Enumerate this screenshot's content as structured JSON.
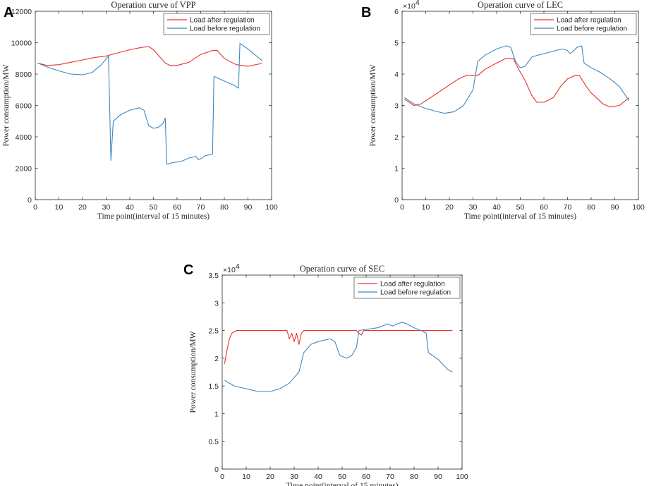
{
  "chart_data": [
    {
      "panel_letter": "A",
      "type": "line",
      "title": "Operation curve of VPP",
      "xlabel": "Time point(interval of 15 minutes)",
      "ylabel": "Power consumption/MW",
      "xlim": [
        0,
        100
      ],
      "ylim": [
        0,
        12000
      ],
      "xticks": [
        0,
        10,
        20,
        30,
        40,
        50,
        60,
        70,
        80,
        90,
        100
      ],
      "yticks": [
        0,
        2000,
        4000,
        6000,
        8000,
        10000,
        12000
      ],
      "ytick_labels": [
        "0",
        "2000",
        "4000",
        "6000",
        "8000",
        "10000",
        "12000"
      ],
      "exponent_label": "",
      "legend": [
        "Load after regulation",
        "Load before regulation"
      ],
      "series": [
        {
          "name": "Load after regulation",
          "color": "#e8302f",
          "points": [
            [
              1,
              8700
            ],
            [
              5,
              8550
            ],
            [
              10,
              8600
            ],
            [
              15,
              8750
            ],
            [
              20,
              8900
            ],
            [
              25,
              9050
            ],
            [
              30,
              9150
            ],
            [
              35,
              9350
            ],
            [
              40,
              9550
            ],
            [
              45,
              9700
            ],
            [
              48,
              9750
            ],
            [
              50,
              9550
            ],
            [
              55,
              8700
            ],
            [
              57,
              8550
            ],
            [
              60,
              8550
            ],
            [
              65,
              8750
            ],
            [
              70,
              9250
            ],
            [
              75,
              9500
            ],
            [
              77,
              9500
            ],
            [
              80,
              9000
            ],
            [
              85,
              8600
            ],
            [
              90,
              8500
            ],
            [
              95,
              8650
            ],
            [
              96,
              8700
            ]
          ]
        },
        {
          "name": "Load before regulation",
          "color": "#3d88c2",
          "points": [
            [
              1,
              8700
            ],
            [
              5,
              8450
            ],
            [
              10,
              8200
            ],
            [
              15,
              8000
            ],
            [
              20,
              7950
            ],
            [
              24,
              8100
            ],
            [
              28,
              8600
            ],
            [
              31,
              9150
            ],
            [
              32,
              2500
            ],
            [
              33,
              5000
            ],
            [
              36,
              5400
            ],
            [
              40,
              5700
            ],
            [
              44,
              5850
            ],
            [
              46,
              5700
            ],
            [
              48,
              4700
            ],
            [
              50,
              4550
            ],
            [
              52,
              4600
            ],
            [
              54,
              4850
            ],
            [
              55,
              5200
            ],
            [
              55.6,
              2250
            ],
            [
              58,
              2350
            ],
            [
              62,
              2450
            ],
            [
              65,
              2650
            ],
            [
              68,
              2750
            ],
            [
              69,
              2550
            ],
            [
              70,
              2600
            ],
            [
              72,
              2800
            ],
            [
              75,
              2900
            ],
            [
              75.6,
              7850
            ],
            [
              80,
              7550
            ],
            [
              84,
              7300
            ],
            [
              86,
              7100
            ],
            [
              86.6,
              9950
            ],
            [
              90,
              9600
            ],
            [
              96,
              8850
            ]
          ]
        }
      ]
    },
    {
      "panel_letter": "B",
      "type": "line",
      "title": "Operation curve of LEC",
      "xlabel": "Time point(interval of 15 minutes)",
      "ylabel": "Power consumption/MW",
      "xlim": [
        0,
        100
      ],
      "ylim": [
        0,
        6
      ],
      "xticks": [
        0,
        10,
        20,
        30,
        40,
        50,
        60,
        70,
        80,
        90,
        100
      ],
      "yticks": [
        0,
        1,
        2,
        3,
        4,
        5,
        6
      ],
      "ytick_labels": [
        "0",
        "1",
        "2",
        "3",
        "4",
        "5",
        "6"
      ],
      "exponent_label": "×10",
      "exponent_power": "4",
      "legend": [
        "Load after regulation",
        "Load before regulation"
      ],
      "series": [
        {
          "name": "Load after regulation",
          "color": "#e8302f",
          "points": [
            [
              1,
              3.2
            ],
            [
              5,
              3.0
            ],
            [
              8,
              3.05
            ],
            [
              12,
              3.25
            ],
            [
              16,
              3.45
            ],
            [
              20,
              3.65
            ],
            [
              24,
              3.85
            ],
            [
              27,
              3.95
            ],
            [
              32,
              3.95
            ],
            [
              35,
              4.15
            ],
            [
              40,
              4.35
            ],
            [
              44,
              4.5
            ],
            [
              47,
              4.5
            ],
            [
              49,
              4.2
            ],
            [
              52,
              3.8
            ],
            [
              55,
              3.3
            ],
            [
              57,
              3.1
            ],
            [
              60,
              3.1
            ],
            [
              64,
              3.25
            ],
            [
              67,
              3.6
            ],
            [
              70,
              3.85
            ],
            [
              73,
              3.95
            ],
            [
              75,
              3.95
            ],
            [
              78,
              3.6
            ],
            [
              80,
              3.4
            ],
            [
              85,
              3.05
            ],
            [
              88,
              2.95
            ],
            [
              92,
              3.0
            ],
            [
              96,
              3.25
            ]
          ]
        },
        {
          "name": "Load before regulation",
          "color": "#3d88c2",
          "points": [
            [
              1,
              3.25
            ],
            [
              5,
              3.05
            ],
            [
              10,
              2.9
            ],
            [
              15,
              2.8
            ],
            [
              18,
              2.75
            ],
            [
              22,
              2.8
            ],
            [
              26,
              3.0
            ],
            [
              30,
              3.5
            ],
            [
              32,
              4.4
            ],
            [
              35,
              4.6
            ],
            [
              40,
              4.8
            ],
            [
              44,
              4.9
            ],
            [
              46,
              4.85
            ],
            [
              48,
              4.4
            ],
            [
              50,
              4.2
            ],
            [
              52,
              4.25
            ],
            [
              55,
              4.55
            ],
            [
              60,
              4.65
            ],
            [
              65,
              4.75
            ],
            [
              68,
              4.8
            ],
            [
              70,
              4.75
            ],
            [
              71,
              4.65
            ],
            [
              72,
              4.7
            ],
            [
              74,
              4.85
            ],
            [
              76,
              4.9
            ],
            [
              77,
              4.35
            ],
            [
              80,
              4.2
            ],
            [
              84,
              4.05
            ],
            [
              88,
              3.85
            ],
            [
              92,
              3.6
            ],
            [
              96,
              3.15
            ]
          ]
        }
      ]
    },
    {
      "panel_letter": "C",
      "type": "line",
      "title": "Operation curve of SEC",
      "xlabel": "Time point(interval of 15 minutes)",
      "ylabel": "Power consumption/MW",
      "xlim": [
        0,
        100
      ],
      "ylim": [
        0,
        3.5
      ],
      "xticks": [
        0,
        10,
        20,
        30,
        40,
        50,
        60,
        70,
        80,
        90,
        100
      ],
      "yticks": [
        0,
        0.5,
        1,
        1.5,
        2,
        2.5,
        3,
        3.5
      ],
      "ytick_labels": [
        "0",
        "0.5",
        "1",
        "1.5",
        "2",
        "2.5",
        "3",
        "3.5"
      ],
      "exponent_label": "×10",
      "exponent_power": "4",
      "legend": [
        "Load after regulation",
        "Load before regulation"
      ],
      "series": [
        {
          "name": "Load after regulation",
          "color": "#e8302f",
          "points": [
            [
              1,
              1.9
            ],
            [
              2,
              2.15
            ],
            [
              3,
              2.35
            ],
            [
              4,
              2.45
            ],
            [
              6,
              2.5
            ],
            [
              10,
              2.5
            ],
            [
              20,
              2.5
            ],
            [
              27,
              2.5
            ],
            [
              28,
              2.35
            ],
            [
              29,
              2.45
            ],
            [
              30,
              2.3
            ],
            [
              31,
              2.45
            ],
            [
              32,
              2.25
            ],
            [
              33,
              2.45
            ],
            [
              34,
              2.5
            ],
            [
              40,
              2.5
            ],
            [
              50,
              2.5
            ],
            [
              56,
              2.5
            ],
            [
              57,
              2.45
            ],
            [
              58,
              2.42
            ],
            [
              59,
              2.5
            ],
            [
              70,
              2.5
            ],
            [
              80,
              2.5
            ],
            [
              90,
              2.5
            ],
            [
              96,
              2.5
            ]
          ]
        },
        {
          "name": "Load before regulation",
          "color": "#3d88c2",
          "points": [
            [
              1,
              1.6
            ],
            [
              5,
              1.5
            ],
            [
              10,
              1.45
            ],
            [
              15,
              1.4
            ],
            [
              20,
              1.4
            ],
            [
              24,
              1.45
            ],
            [
              28,
              1.55
            ],
            [
              30,
              1.65
            ],
            [
              32,
              1.75
            ],
            [
              34,
              2.1
            ],
            [
              37,
              2.25
            ],
            [
              40,
              2.3
            ],
            [
              45,
              2.35
            ],
            [
              47,
              2.3
            ],
            [
              49,
              2.05
            ],
            [
              52,
              2.0
            ],
            [
              54,
              2.05
            ],
            [
              56,
              2.2
            ],
            [
              57,
              2.5
            ],
            [
              60,
              2.52
            ],
            [
              65,
              2.55
            ],
            [
              69,
              2.62
            ],
            [
              71,
              2.58
            ],
            [
              73,
              2.62
            ],
            [
              75,
              2.65
            ],
            [
              77,
              2.62
            ],
            [
              80,
              2.55
            ],
            [
              83,
              2.5
            ],
            [
              85,
              2.45
            ],
            [
              86,
              2.1
            ],
            [
              90,
              1.98
            ],
            [
              94,
              1.8
            ],
            [
              96,
              1.75
            ]
          ]
        }
      ]
    }
  ]
}
